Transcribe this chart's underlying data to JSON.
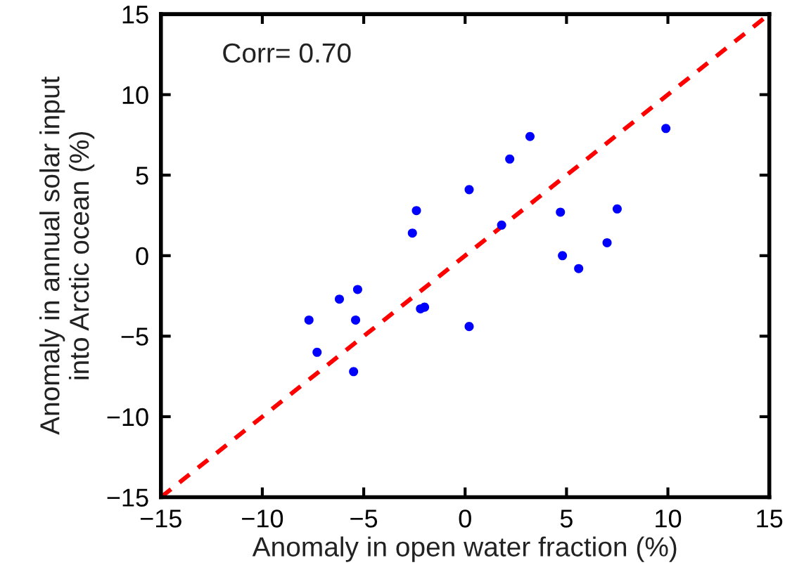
{
  "chart_data": {
    "type": "scatter",
    "xlabel": "Anomaly in open water fraction (%)",
    "ylabel": "Anomaly in annual solar input\ninto Arctic ocean (%)",
    "annotations": [
      "Corr= 0.70"
    ],
    "xlim": [
      -15,
      15
    ],
    "ylim": [
      -15,
      15
    ],
    "xticks": [
      -15,
      -10,
      -5,
      0,
      5,
      10,
      15
    ],
    "yticks": [
      -15,
      -10,
      -5,
      0,
      5,
      10,
      15
    ],
    "grid": false,
    "legend": false,
    "series": [
      {
        "color": "#0000ff",
        "marker": "circle",
        "x": [
          -7.7,
          -7.3,
          -6.2,
          -5.3,
          -5.4,
          -5.5,
          -2.6,
          -2.4,
          -2.2,
          -2.0,
          0.2,
          0.2,
          1.8,
          2.2,
          3.2,
          4.7,
          4.8,
          5.6,
          7.0,
          7.5,
          9.9
        ],
        "values": [
          -4.0,
          -6.0,
          -2.7,
          -2.1,
          -4.0,
          -7.2,
          1.4,
          2.8,
          -3.3,
          -3.2,
          4.1,
          -4.4,
          1.9,
          6.0,
          7.4,
          2.7,
          0.0,
          -0.8,
          0.8,
          2.9,
          7.9
        ]
      },
      {
        "type": "line",
        "color": "#ff0000",
        "line_style": "dashed",
        "marker": "none",
        "x": [
          -15,
          15
        ],
        "values": [
          -15,
          15
        ]
      }
    ]
  }
}
